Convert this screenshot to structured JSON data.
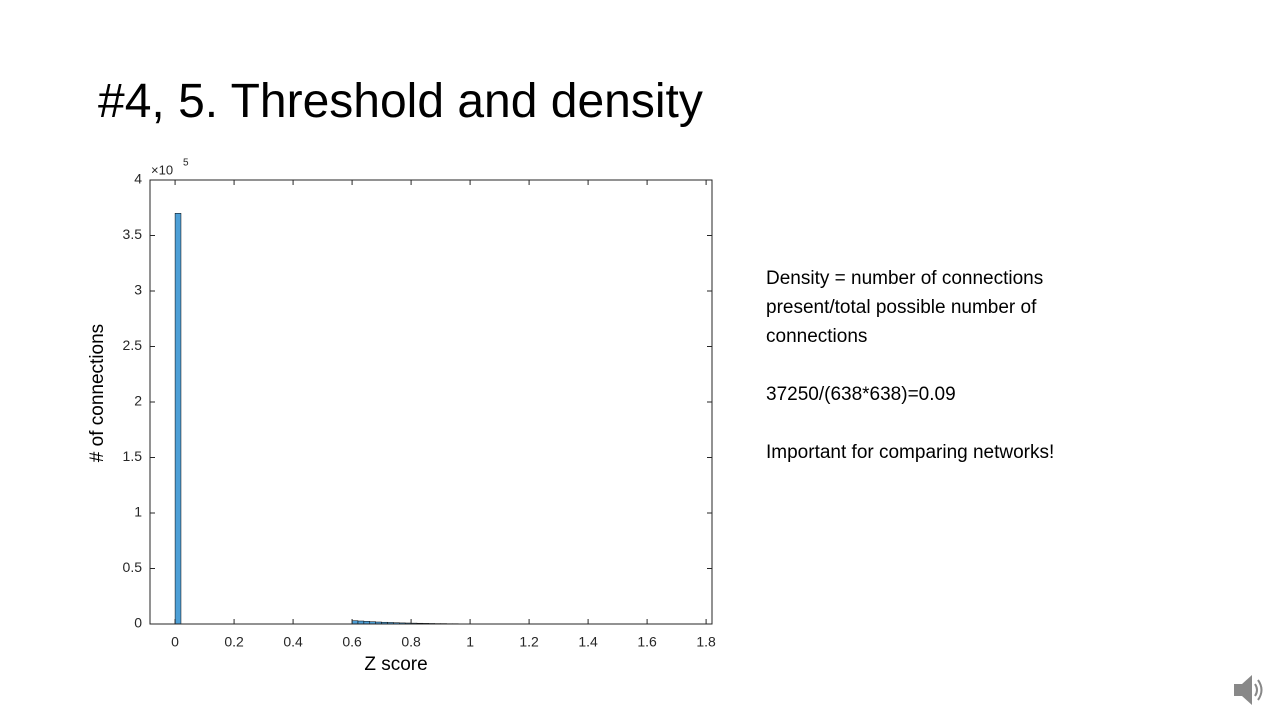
{
  "slide": {
    "title": "#4, 5. Threshold and density",
    "paragraphs": [
      "Density = number of connections present/total possible number of connections",
      "37250/(638*638)=0.09",
      "Important for comparing networks!"
    ]
  },
  "chart_data": {
    "type": "histogram",
    "x_label": "Z score",
    "y_label": "# of connections",
    "y_multiplier": "×10",
    "y_multiplier_exponent": "5",
    "bins": [
      0,
      0.02,
      0.04,
      0.06,
      0.08,
      0.1,
      0.12,
      0.14,
      0.16,
      0.18,
      0.2,
      0.22,
      0.24,
      0.26,
      0.28,
      0.3,
      0.32,
      0.34,
      0.36,
      0.38,
      0.4,
      0.42,
      0.44,
      0.46,
      0.48,
      0.5,
      0.52,
      0.54,
      0.56,
      0.58,
      0.6,
      0.62,
      0.64,
      0.66,
      0.68,
      0.7,
      0.72,
      0.74,
      0.76,
      0.78,
      0.8,
      0.82,
      0.84,
      0.86,
      0.88,
      0.9,
      0.92,
      0.94,
      0.96,
      0.98,
      1,
      1.02,
      1.04,
      1.06,
      1.08,
      1.1,
      1.12,
      1.14,
      1.16,
      1.18,
      1.2,
      1.22,
      1.24,
      1.26,
      1.28,
      1.3,
      1.32,
      1.34,
      1.36,
      1.38,
      1.4,
      1.42,
      1.44,
      1.46,
      1.48,
      1.5,
      1.52,
      1.54,
      1.56,
      1.58,
      1.6,
      1.62,
      1.64,
      1.66,
      1.68,
      1.7,
      1.72,
      1.74
    ],
    "values": [
      3.7,
      0,
      0,
      0,
      0,
      0,
      0,
      0,
      0,
      0,
      0,
      0,
      0,
      0,
      0,
      0,
      0,
      0,
      0,
      0,
      0,
      0,
      0,
      0,
      0,
      0,
      0,
      0,
      0,
      0,
      0.03,
      0.027,
      0.024,
      0.021,
      0.018,
      0.016,
      0.014,
      0.012,
      0.01,
      0.009,
      0.008,
      0.007,
      0.006,
      0.005,
      0.004,
      0.004,
      0.003,
      0.003,
      0.002,
      0.002,
      0.001,
      0.001,
      0.001,
      0.001,
      0.001,
      0.001,
      0.001,
      0.001,
      0.001,
      0.001,
      0.0005,
      0.0005,
      0.0005,
      0.0005,
      0.0005,
      0.0005,
      0.0005,
      0.0005,
      0.0005,
      0.0005,
      0,
      0,
      0,
      0,
      0,
      0,
      0,
      0,
      0,
      0,
      0,
      0,
      0,
      0,
      0,
      0,
      0
    ],
    "color": "#4d9fd6",
    "edge_color": "#000000",
    "xlim": [
      -0.085,
      1.82
    ],
    "xticks": [
      0,
      0.2,
      0.4,
      0.6,
      0.8,
      1,
      1.2,
      1.4,
      1.6,
      1.8
    ],
    "ylim": [
      0,
      4
    ],
    "yticks": [
      0,
      0.5,
      1,
      1.5,
      2,
      2.5,
      3,
      3.5,
      4
    ]
  }
}
